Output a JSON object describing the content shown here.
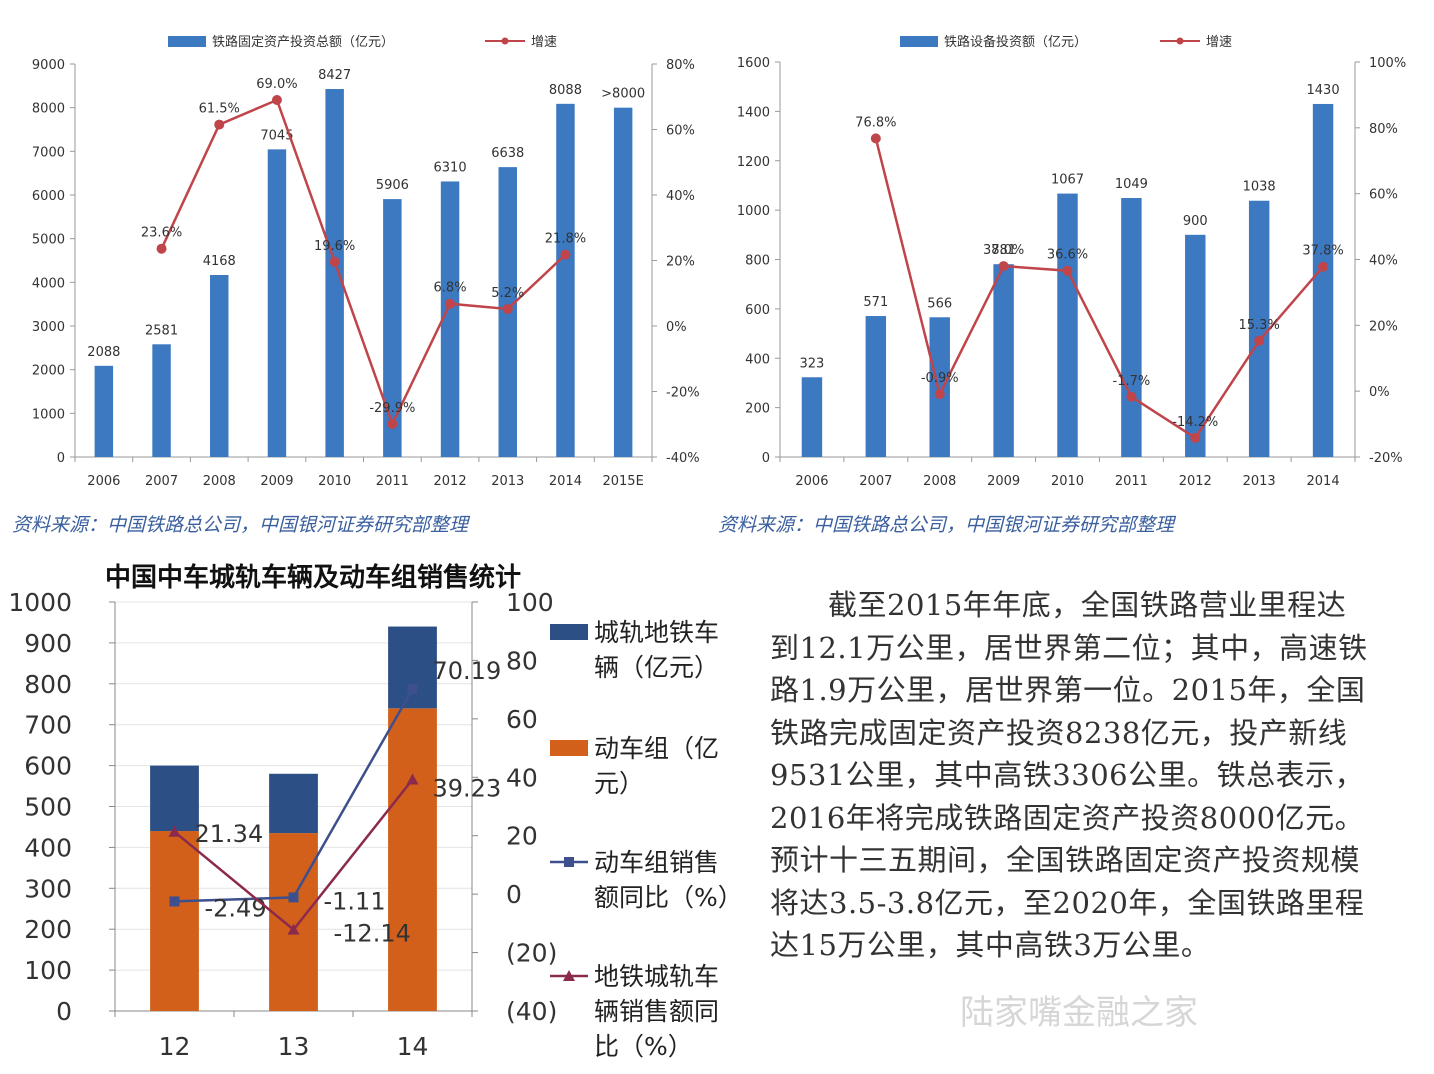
{
  "colors": {
    "bar_blue": "#3c79c1",
    "line_red": "#c0454a",
    "orange": "#d2601a",
    "navy": "#2c4f86",
    "navy_line": "#3d4f8c",
    "maroon_line": "#8b2a4c"
  },
  "source_text": "资料来源：中国铁路总公司，中国银河证券研究部整理",
  "paragraph": "截至2015年年底，全国铁路营业里程达到12.1万公里，居世界第二位；其中，高速铁路1.9万公里，居世界第一位。2015年，全国铁路完成固定资产投资8238亿元，投产新线9531公里，其中高铁3306公里。铁总表示，2016年将完成铁路固定资产投资8000亿元。预计十三五期间，全国铁路固定资产投资规模将达3.5-3.8亿元，至2020年，全国铁路里程达15万公里，其中高铁3万公里。",
  "watermark": "陆家嘴金融之家",
  "chart_data": [
    {
      "type": "bar",
      "title": "",
      "categories": [
        "2006",
        "2007",
        "2008",
        "2009",
        "2010",
        "2011",
        "2012",
        "2013",
        "2014",
        "2015E"
      ],
      "series": [
        {
          "name": "铁路固定资产投资总额（亿元）",
          "type": "bar",
          "values": [
            2088,
            2581,
            4168,
            7045,
            8427,
            5906,
            6310,
            6638,
            8088,
            8000
          ],
          "labels": [
            "2088",
            "2581",
            "4168",
            "7045",
            "8427",
            "5906",
            "6310",
            "6638",
            "8088",
            ">8000"
          ]
        },
        {
          "name": "增速",
          "type": "line",
          "axis": "right",
          "values": [
            null,
            23.6,
            61.5,
            69.0,
            19.6,
            -29.9,
            6.8,
            5.2,
            21.8,
            null
          ],
          "labels": [
            "",
            "23.6%",
            "61.5%",
            "69.0%",
            "19.6%",
            "-29.9%",
            "6.8%",
            "5.2%",
            "21.8%",
            ""
          ]
        }
      ],
      "ylim": [
        0,
        9000
      ],
      "yticks": [
        "0",
        "1000",
        "2000",
        "3000",
        "4000",
        "5000",
        "6000",
        "7000",
        "8000",
        "9000"
      ],
      "y2lim": [
        -40,
        80
      ],
      "y2ticks": [
        "-40%",
        "-20%",
        "0%",
        "20%",
        "40%",
        "60%",
        "80%"
      ],
      "grid": false,
      "legend": "top"
    },
    {
      "type": "bar",
      "title": "",
      "categories": [
        "2006",
        "2007",
        "2008",
        "2009",
        "2010",
        "2011",
        "2012",
        "2013",
        "2014"
      ],
      "series": [
        {
          "name": "铁路设备投资额（亿元）",
          "type": "bar",
          "values": [
            323,
            571,
            566,
            781,
            1067,
            1049,
            900,
            1038,
            1430
          ],
          "labels": [
            "323",
            "571",
            "566",
            "781",
            "1067",
            "1049",
            "900",
            "1038",
            "1430"
          ]
        },
        {
          "name": "增速",
          "type": "line",
          "axis": "right",
          "values": [
            null,
            76.8,
            -0.9,
            38.0,
            36.6,
            -1.7,
            -14.2,
            15.3,
            37.8
          ],
          "labels": [
            "",
            "76.8%",
            "-0.9%",
            "38.0%",
            "36.6%",
            "-1.7%",
            "-14.2%",
            "15.3%",
            "37.8%"
          ]
        }
      ],
      "ylim": [
        0,
        1600
      ],
      "yticks": [
        "0",
        "200",
        "400",
        "600",
        "800",
        "1000",
        "1200",
        "1400",
        "1600"
      ],
      "y2lim": [
        -20,
        100
      ],
      "y2ticks": [
        "-20%",
        "0%",
        "20%",
        "40%",
        "60%",
        "80%",
        "100%"
      ],
      "grid": false,
      "legend": "top"
    },
    {
      "type": "bar",
      "title": "中国中车城轨车辆及动车组销售统计",
      "categories": [
        "12",
        "13",
        "14"
      ],
      "stacked": true,
      "series": [
        {
          "name": "动车组（亿元）",
          "type": "bar",
          "values": [
            440,
            435,
            740
          ]
        },
        {
          "name": "城轨地铁车辆（亿元）",
          "type": "bar",
          "values": [
            160,
            145,
            200
          ]
        },
        {
          "name": "动车组销售额同比（%）",
          "type": "line",
          "axis": "right",
          "values": [
            -2.49,
            -1.11,
            70.19
          ],
          "labels": [
            "-2.49",
            "-1.11",
            "70.19"
          ]
        },
        {
          "name": "地铁城轨车辆销售额同比（%）",
          "type": "line",
          "axis": "right",
          "values": [
            21.34,
            -12.14,
            39.23
          ],
          "labels": [
            "21.34",
            "-12.14",
            "39.23"
          ]
        }
      ],
      "legend_lines": [
        [
          "城轨地铁车",
          "辆（亿元）"
        ],
        [
          "动车组（亿",
          "元）"
        ],
        [
          "动车组销售",
          "额同比（%）"
        ],
        [
          "地铁城轨车",
          "辆销售额同",
          "比（%）"
        ]
      ],
      "ylim": [
        0,
        1000
      ],
      "yticks": [
        "0",
        "100",
        "200",
        "300",
        "400",
        "500",
        "600",
        "700",
        "800",
        "900",
        "1000"
      ],
      "y2lim": [
        -40,
        100
      ],
      "y2ticks": [
        "(40)",
        "(20)",
        "0",
        "20",
        "40",
        "60",
        "80",
        "100"
      ],
      "grid": true,
      "legend": "right"
    }
  ]
}
